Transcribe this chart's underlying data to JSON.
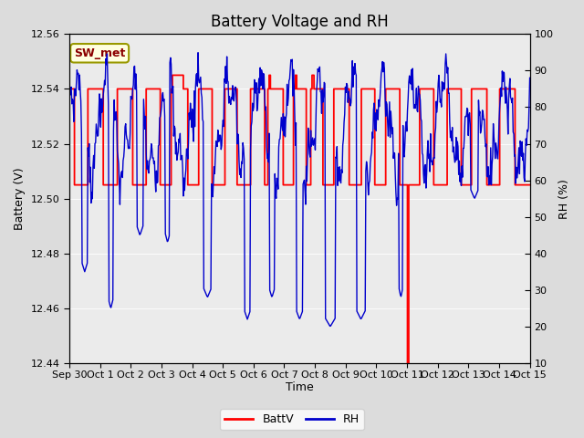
{
  "title": "Battery Voltage and RH",
  "xlabel": "Time",
  "ylabel_left": "Battery (V)",
  "ylabel_right": "RH (%)",
  "annotation": "SW_met",
  "ylim_left": [
    12.44,
    12.56
  ],
  "ylim_right": [
    10,
    100
  ],
  "yticks_left": [
    12.44,
    12.46,
    12.48,
    12.5,
    12.52,
    12.54,
    12.56
  ],
  "yticks_right": [
    10,
    20,
    30,
    40,
    50,
    60,
    70,
    80,
    90,
    100
  ],
  "xtick_labels": [
    "Sep 30",
    "Oct 1",
    "Oct 2",
    "Oct 3",
    "Oct 4",
    "Oct 5",
    "Oct 6",
    "Oct 7",
    "Oct 8",
    "Oct 9",
    "Oct 10",
    "Oct 11",
    "Oct 12",
    "Oct 13",
    "Oct 14",
    "Oct 15"
  ],
  "bg_color": "#dcdcdc",
  "inner_bg_color": "#ebebeb",
  "battv_color": "#ff0000",
  "rh_color": "#0000cc",
  "legend_battv": "BattV",
  "legend_rh": "RH",
  "title_fontsize": 12,
  "axis_fontsize": 9,
  "tick_fontsize": 8
}
